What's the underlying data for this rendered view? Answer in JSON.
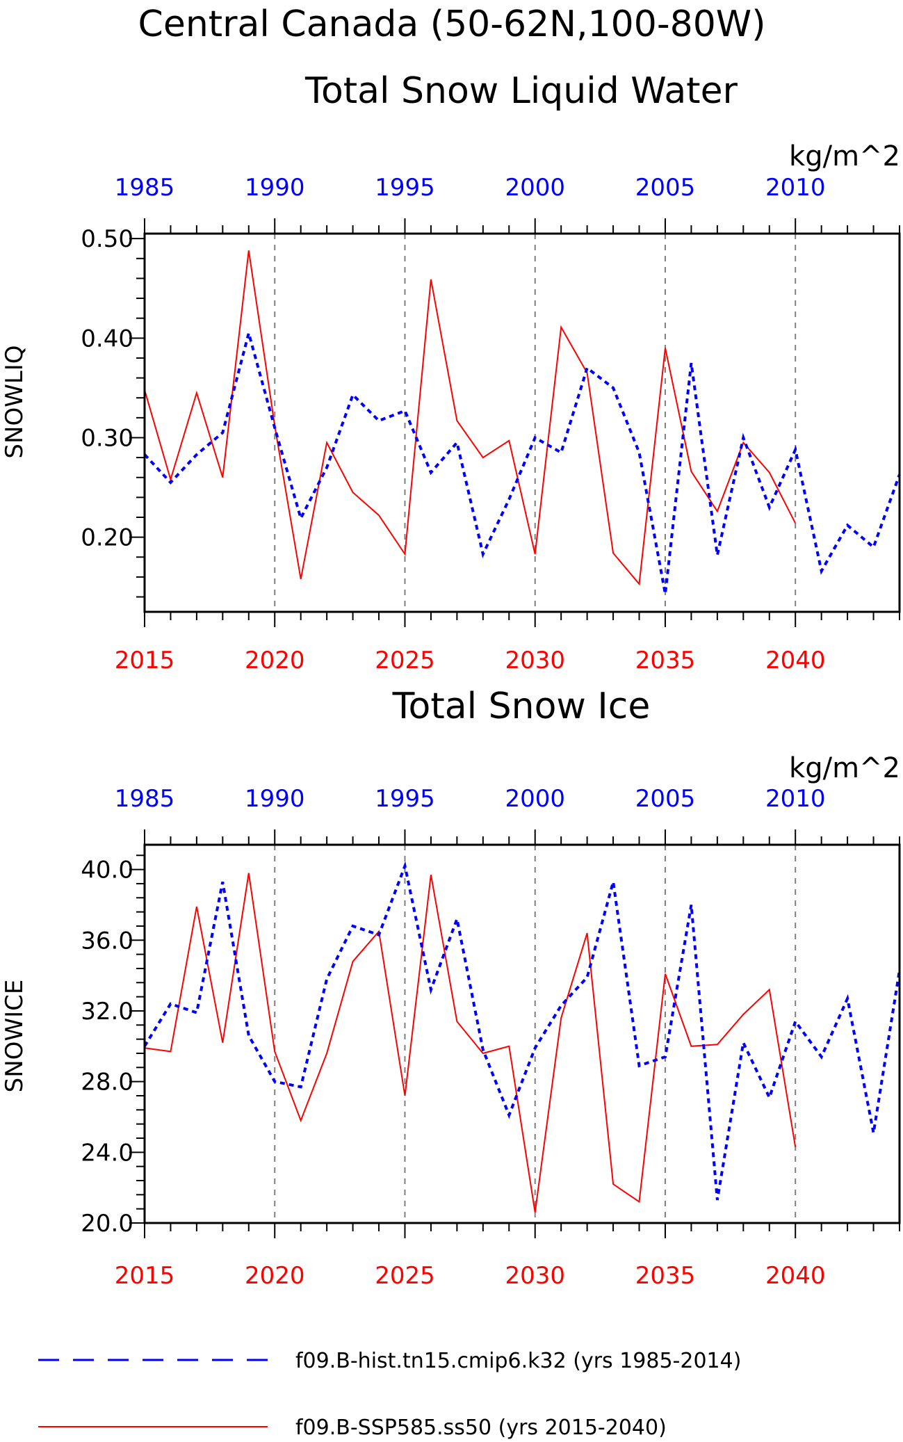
{
  "suptitle": "Central Canada (50-62N,100-80W)",
  "colors": {
    "hist": "#0000ff",
    "ssp": "#ff0000",
    "frame": "#000000",
    "grid": "#7f7f7f"
  },
  "legend": [
    {
      "label": "f09.B-hist.tn15.cmip6.k32 (yrs 1985-2014)",
      "style": "dashed",
      "color": "#0000ff"
    },
    {
      "label": "f09.B-SSP585.ss50 (yrs 2015-2040)",
      "style": "solid",
      "color": "#ff0000"
    }
  ],
  "chart_data": [
    {
      "type": "line",
      "title": "Total Snow Liquid Water",
      "units": "kg/m^2",
      "ylabel": "SNOWLIQ",
      "ylim": [
        0.125,
        0.505
      ],
      "yticks": [
        0.2,
        0.3,
        0.4,
        0.5
      ],
      "ytick_labels": [
        "0.20",
        "0.30",
        "0.40",
        "0.50"
      ],
      "xlim_bottom": [
        2015,
        2044
      ],
      "xticks_bottom": [
        2015,
        2020,
        2025,
        2030,
        2035,
        2040
      ],
      "xticks_top_labels": [
        "1985",
        "1990",
        "1995",
        "2000",
        "2005",
        "2010"
      ],
      "grid": "vertical dashed at 2020, 2025, 2030, 2035, 2040",
      "series": [
        {
          "key": "ssp",
          "years": [
            2015,
            2016,
            2017,
            2018,
            2019,
            2020,
            2021,
            2022,
            2023,
            2024,
            2025,
            2026,
            2027,
            2028,
            2029,
            2030,
            2031,
            2032,
            2033,
            2034,
            2035,
            2036,
            2037,
            2038,
            2039,
            2040
          ],
          "values": [
            0.348,
            0.258,
            0.345,
            0.26,
            0.488,
            0.312,
            0.158,
            0.295,
            0.245,
            0.222,
            0.183,
            0.459,
            0.317,
            0.28,
            0.297,
            0.183,
            0.411,
            0.365,
            0.184,
            0.153,
            0.39,
            0.266,
            0.226,
            0.295,
            0.265,
            0.214
          ]
        },
        {
          "key": "hist",
          "years": [
            1985,
            1986,
            1987,
            1988,
            1989,
            1990,
            1991,
            1992,
            1993,
            1994,
            1995,
            1996,
            1997,
            1998,
            1999,
            2000,
            2001,
            2002,
            2003,
            2004,
            2005,
            2006,
            2007,
            2008,
            2009,
            2010,
            2011,
            2012,
            2013,
            2014
          ],
          "values": [
            0.283,
            0.255,
            0.283,
            0.305,
            0.405,
            0.31,
            0.219,
            0.27,
            0.343,
            0.317,
            0.327,
            0.265,
            0.295,
            0.183,
            0.238,
            0.3,
            0.285,
            0.37,
            0.35,
            0.285,
            0.143,
            0.375,
            0.182,
            0.3,
            0.23,
            0.288,
            0.166,
            0.212,
            0.19,
            0.263
          ]
        }
      ]
    },
    {
      "type": "line",
      "title": "Total Snow Ice",
      "units": "kg/m^2",
      "ylabel": "SNOWICE",
      "ylim": [
        20.0,
        41.4
      ],
      "yticks": [
        20,
        24,
        28,
        32,
        36,
        40
      ],
      "ytick_labels": [
        "20.0",
        "24.0",
        "28.0",
        "32.0",
        "36.0",
        "40.0"
      ],
      "xlim_bottom": [
        2015,
        2044
      ],
      "xticks_bottom": [
        2015,
        2020,
        2025,
        2030,
        2035,
        2040
      ],
      "xticks_top_labels": [
        "1985",
        "1990",
        "1995",
        "2000",
        "2005",
        "2010"
      ],
      "grid": "vertical dashed at 2020, 2025, 2030, 2035, 2040",
      "series": [
        {
          "key": "ssp",
          "years": [
            2015,
            2016,
            2017,
            2018,
            2019,
            2020,
            2021,
            2022,
            2023,
            2024,
            2025,
            2026,
            2027,
            2028,
            2029,
            2030,
            2031,
            2032,
            2033,
            2034,
            2035,
            2036,
            2037,
            2038,
            2039,
            2040
          ],
          "values": [
            29.9,
            29.7,
            37.9,
            30.2,
            39.8,
            29.7,
            25.8,
            29.6,
            34.8,
            36.5,
            27.2,
            39.7,
            31.4,
            29.6,
            30.0,
            20.6,
            31.6,
            36.4,
            22.2,
            21.2,
            34.1,
            30.0,
            30.1,
            31.8,
            33.2,
            24.3
          ]
        },
        {
          "key": "hist",
          "years": [
            1985,
            1986,
            1987,
            1988,
            1989,
            1990,
            1991,
            1992,
            1993,
            1994,
            1995,
            1996,
            1997,
            1998,
            1999,
            2000,
            2001,
            2002,
            2003,
            2004,
            2005,
            2006,
            2007,
            2008,
            2009,
            2010,
            2011,
            2012,
            2013,
            2014
          ],
          "values": [
            30.0,
            32.4,
            31.9,
            39.3,
            30.6,
            28.0,
            27.7,
            33.8,
            36.8,
            36.3,
            40.2,
            33.2,
            37.2,
            29.8,
            26.1,
            29.9,
            32.3,
            33.9,
            39.3,
            28.9,
            29.4,
            38.0,
            21.3,
            30.2,
            27.1,
            31.4,
            29.4,
            32.7,
            25.1,
            34.3
          ]
        }
      ]
    }
  ]
}
